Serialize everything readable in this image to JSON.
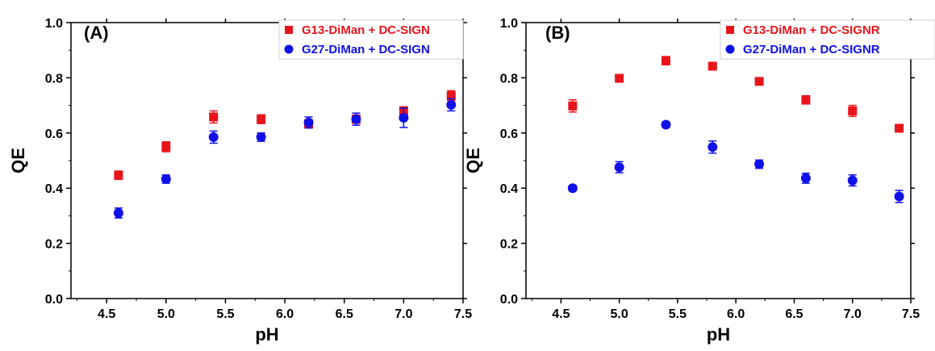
{
  "chart_data": [
    {
      "type": "scatter",
      "panel_label": "(A)",
      "xlabel": "pH",
      "ylabel": "QE",
      "xlim": [
        4.2,
        7.5
      ],
      "ylim": [
        0.0,
        1.0
      ],
      "xticks": [
        "4.5",
        "5.0",
        "5.5",
        "6.0",
        "6.5",
        "7.0",
        "7.5"
      ],
      "yticks": [
        "0.0",
        "0.2",
        "0.4",
        "0.6",
        "0.8",
        "1.0"
      ],
      "grid": false,
      "legend_position": "top-right",
      "x": [
        4.6,
        5.0,
        5.4,
        5.8,
        6.2,
        6.6,
        7.0,
        7.4
      ],
      "series": [
        {
          "name": "G13-DiMan + DC-SIGN",
          "marker": "square",
          "color": "#e8141b",
          "values": [
            0.447,
            0.55,
            0.658,
            0.65,
            0.633,
            0.65,
            0.68,
            0.735
          ],
          "errors": [
            0.015,
            0.018,
            0.022,
            0.016,
            0.015,
            0.015,
            0.015,
            0.018
          ]
        },
        {
          "name": "G27-DiMan + DC-SIGN",
          "marker": "circle",
          "color": "#1010e8",
          "values": [
            0.31,
            0.433,
            0.585,
            0.585,
            0.638,
            0.65,
            0.655,
            0.702
          ],
          "errors": [
            0.018,
            0.015,
            0.022,
            0.015,
            0.02,
            0.022,
            0.035,
            0.022
          ]
        }
      ]
    },
    {
      "type": "scatter",
      "panel_label": "(B)",
      "xlabel": "pH",
      "ylabel": "QE",
      "xlim": [
        4.2,
        7.5
      ],
      "ylim": [
        0.0,
        1.0
      ],
      "xticks": [
        "4.5",
        "5.0",
        "5.5",
        "6.0",
        "6.5",
        "7.0",
        "7.5"
      ],
      "yticks": [
        "0.0",
        "0.2",
        "0.4",
        "0.6",
        "0.8",
        "1.0"
      ],
      "grid": false,
      "legend_position": "top-right",
      "x": [
        4.6,
        5.0,
        5.4,
        5.8,
        6.2,
        6.6,
        7.0,
        7.4
      ],
      "series": [
        {
          "name": "G13-DiMan + DC-SIGNR",
          "marker": "square",
          "color": "#e8141b",
          "values": [
            0.698,
            0.798,
            0.862,
            0.842,
            0.787,
            0.72,
            0.68,
            0.617
          ],
          "errors": [
            0.022,
            0.01,
            0.015,
            0.012,
            0.01,
            0.015,
            0.02,
            0.01
          ]
        },
        {
          "name": "G27-DiMan + DC-SIGNR",
          "marker": "circle",
          "color": "#1010e8",
          "values": [
            0.4,
            0.476,
            0.63,
            0.549,
            0.487,
            0.436,
            0.428,
            0.37
          ],
          "errors": [
            0.01,
            0.02,
            0.01,
            0.022,
            0.015,
            0.018,
            0.02,
            0.022
          ]
        }
      ]
    }
  ]
}
